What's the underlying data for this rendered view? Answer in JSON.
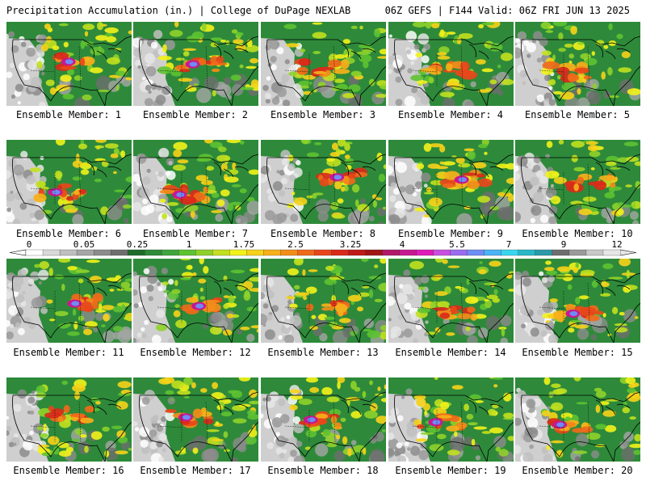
{
  "header": {
    "title_left": "Precipitation Accumulation (in.) | College of DuPage NEXLAB",
    "title_right": "06Z GEFS | F144 Valid: 06Z FRI JUN 13 2025"
  },
  "panel_label_prefix": "Ensemble Member: ",
  "members": [
    {
      "id": 1,
      "label": "Ensemble Member: 1"
    },
    {
      "id": 2,
      "label": "Ensemble Member: 2"
    },
    {
      "id": 3,
      "label": "Ensemble Member: 3"
    },
    {
      "id": 4,
      "label": "Ensemble Member: 4"
    },
    {
      "id": 5,
      "label": "Ensemble Member: 5"
    },
    {
      "id": 6,
      "label": "Ensemble Member: 6"
    },
    {
      "id": 7,
      "label": "Ensemble Member: 7"
    },
    {
      "id": 8,
      "label": "Ensemble Member: 8"
    },
    {
      "id": 9,
      "label": "Ensemble Member: 9"
    },
    {
      "id": 10,
      "label": "Ensemble Member: 10"
    },
    {
      "id": 11,
      "label": "Ensemble Member: 11"
    },
    {
      "id": 12,
      "label": "Ensemble Member: 12"
    },
    {
      "id": 13,
      "label": "Ensemble Member: 13"
    },
    {
      "id": 14,
      "label": "Ensemble Member: 14"
    },
    {
      "id": 15,
      "label": "Ensemble Member: 15"
    },
    {
      "id": 16,
      "label": "Ensemble Member: 16"
    },
    {
      "id": 17,
      "label": "Ensemble Member: 17"
    },
    {
      "id": 18,
      "label": "Ensemble Member: 18"
    },
    {
      "id": 19,
      "label": "Ensemble Member: 19"
    },
    {
      "id": 20,
      "label": "Ensemble Member: 20"
    }
  ],
  "colorbar": {
    "tick_labels": [
      "0",
      "0.05",
      "0.25",
      "1",
      "1.75",
      "2.5",
      "3.25",
      "4",
      "5.5",
      "7",
      "9",
      "12"
    ],
    "colors": [
      "#ffffff",
      "#d9d9d9",
      "#bfbfbf",
      "#a6a6a6",
      "#8c8c8c",
      "#6e6e6e",
      "#1f6b2a",
      "#2e8a3a",
      "#3fa53f",
      "#5ec232",
      "#8fd12a",
      "#c2e01f",
      "#f2f21a",
      "#f7d21a",
      "#f7b01a",
      "#f28c1a",
      "#ef6a1a",
      "#e8461a",
      "#d92a1a",
      "#c01818",
      "#a01414",
      "#b0186a",
      "#c81890",
      "#e01ab8",
      "#c84ee0",
      "#9a6cf0",
      "#6e8cf5",
      "#4ab4f5",
      "#3ad6f0",
      "#2ab8c8",
      "#2a9aa8",
      "#6e6e6e",
      "#9a9a9a",
      "#c8c8c8",
      "#e6e6e6"
    ]
  }
}
